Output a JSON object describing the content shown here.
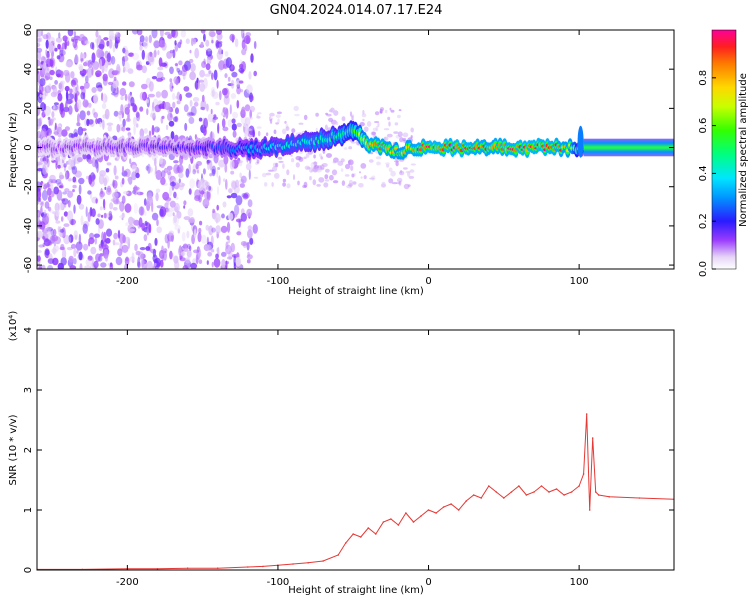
{
  "figure": {
    "title": "GN04.2024.014.07.17.E24"
  },
  "chart_data": [
    {
      "type": "heatmap",
      "xlabel": "Height of straight line (km)",
      "ylabel": "Frequency (Hz)",
      "xlim": [
        -260,
        163
      ],
      "ylim": [
        -62,
        60
      ],
      "x_ticks": [
        "-200",
        "-100",
        "0",
        "100"
      ],
      "x_tick_values": [
        -200,
        -100,
        0,
        100
      ],
      "y_ticks": [
        "60",
        "40",
        "20",
        "0",
        "-20",
        "-40",
        "-60"
      ],
      "y_tick_values": [
        60,
        40,
        20,
        0,
        -20,
        -40,
        -60
      ],
      "colorbar": {
        "label": "Normalized spectral amplitude",
        "ticks": [
          "0.0",
          "0.2",
          "0.4",
          "0.6",
          "0.8"
        ],
        "tick_values": [
          0.0,
          0.2,
          0.4,
          0.6,
          0.8
        ],
        "range": [
          0.0,
          1.0
        ],
        "colormap": "rainbow"
      },
      "ridge": {
        "x": [
          -260,
          -200,
          -150,
          -120,
          -100,
          -80,
          -60,
          -50,
          -40,
          -30,
          -20,
          -10,
          0,
          20,
          40,
          60,
          80,
          95,
          102,
          110,
          163
        ],
        "frequency": [
          0,
          0,
          0,
          -1,
          1,
          3,
          6,
          8,
          2,
          0,
          -2,
          0,
          0,
          0,
          0,
          0,
          0,
          0,
          0,
          0,
          0
        ],
        "amplitude": [
          0.12,
          0.15,
          0.2,
          0.35,
          0.4,
          0.45,
          0.5,
          0.55,
          0.9,
          0.9,
          0.85,
          0.9,
          0.95,
          0.95,
          0.9,
          0.95,
          0.95,
          0.85,
          0.3,
          0.45,
          0.45
        ]
      },
      "grid": false
    },
    {
      "type": "line",
      "xlabel": "Height of straight line (km)",
      "ylabel": "SNR (10 * v/v)",
      "y_multiplier_label": "(x10⁴)",
      "xlim": [
        -260,
        163
      ],
      "ylim": [
        0,
        4
      ],
      "x_ticks": [
        "-200",
        "-100",
        "0",
        "100"
      ],
      "x_tick_values": [
        -200,
        -100,
        0,
        100
      ],
      "y_ticks": [
        "4",
        "3",
        "2",
        "1",
        "0"
      ],
      "y_tick_values": [
        4,
        3,
        2,
        1,
        0
      ],
      "series": [
        {
          "color": "#e53935",
          "x": [
            -260,
            -230,
            -200,
            -180,
            -160,
            -140,
            -120,
            -110,
            -100,
            -90,
            -80,
            -70,
            -60,
            -55,
            -50,
            -45,
            -40,
            -35,
            -30,
            -25,
            -20,
            -15,
            -10,
            -5,
            0,
            5,
            10,
            15,
            20,
            25,
            30,
            35,
            40,
            45,
            50,
            55,
            60,
            65,
            70,
            75,
            80,
            85,
            90,
            95,
            100,
            103,
            105,
            107,
            109,
            111,
            113,
            120,
            140,
            163
          ],
          "values": [
            0.01,
            0.01,
            0.02,
            0.02,
            0.03,
            0.03,
            0.05,
            0.06,
            0.08,
            0.1,
            0.12,
            0.15,
            0.25,
            0.45,
            0.6,
            0.55,
            0.7,
            0.6,
            0.8,
            0.85,
            0.75,
            0.95,
            0.8,
            0.9,
            1.0,
            0.95,
            1.05,
            1.1,
            1.0,
            1.15,
            1.25,
            1.2,
            1.4,
            1.3,
            1.2,
            1.3,
            1.4,
            1.25,
            1.3,
            1.4,
            1.3,
            1.35,
            1.25,
            1.3,
            1.4,
            1.6,
            2.6,
            1.0,
            2.2,
            1.3,
            1.25,
            1.22,
            1.2,
            1.18
          ]
        }
      ],
      "grid": false
    }
  ]
}
